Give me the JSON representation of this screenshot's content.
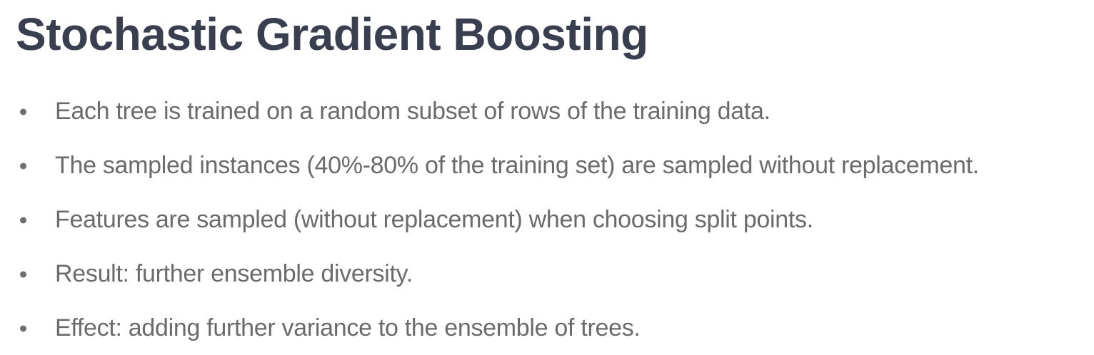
{
  "slide": {
    "title": "Stochastic Gradient Boosting",
    "bullets": [
      "Each tree is trained on a random subset of rows of the training data.",
      "The sampled instances (40%-80% of the training set) are sampled without replacement.",
      "Features are sampled (without replacement) when choosing split points.",
      "Result: further ensemble diversity.",
      "Effect: adding further variance to the ensemble of trees."
    ]
  },
  "colors": {
    "title": "#3a3f4f",
    "text": "#6b6b6b",
    "bullet": "#6e6e6e",
    "background": "#ffffff"
  }
}
